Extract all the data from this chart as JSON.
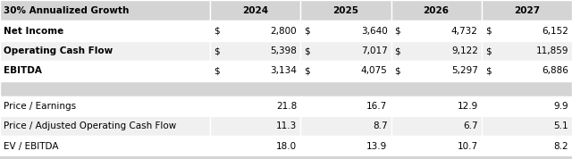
{
  "title": "30% Annualized Growth",
  "years": [
    "2024",
    "2025",
    "2026",
    "2027"
  ],
  "header_bg": "#d4d4d4",
  "dark_bg": "#d4d4d4",
  "light_bg": "#f0f0f0",
  "white_bg": "#ffffff",
  "section1_rows": [
    {
      "label": "Net Income",
      "values": [
        "2,800",
        "3,640",
        "4,732",
        "6,152"
      ]
    },
    {
      "label": "Operating Cash Flow",
      "values": [
        "5,398",
        "7,017",
        "9,122",
        "11,859"
      ]
    },
    {
      "label": "EBITDA",
      "values": [
        "3,134",
        "4,075",
        "5,297",
        "6,886"
      ]
    }
  ],
  "section2_rows": [
    {
      "label": "Price / Earnings",
      "values": [
        "21.8",
        "16.7",
        "12.9",
        "9.9"
      ]
    },
    {
      "label": "Price / Adjusted Operating Cash Flow",
      "values": [
        "11.3",
        "8.7",
        "6.7",
        "5.1"
      ]
    },
    {
      "label": "EV / EBITDA",
      "values": [
        "18.0",
        "13.9",
        "10.7",
        "8.2"
      ]
    }
  ],
  "fontsize": 7.5,
  "header_fontsize": 7.5
}
